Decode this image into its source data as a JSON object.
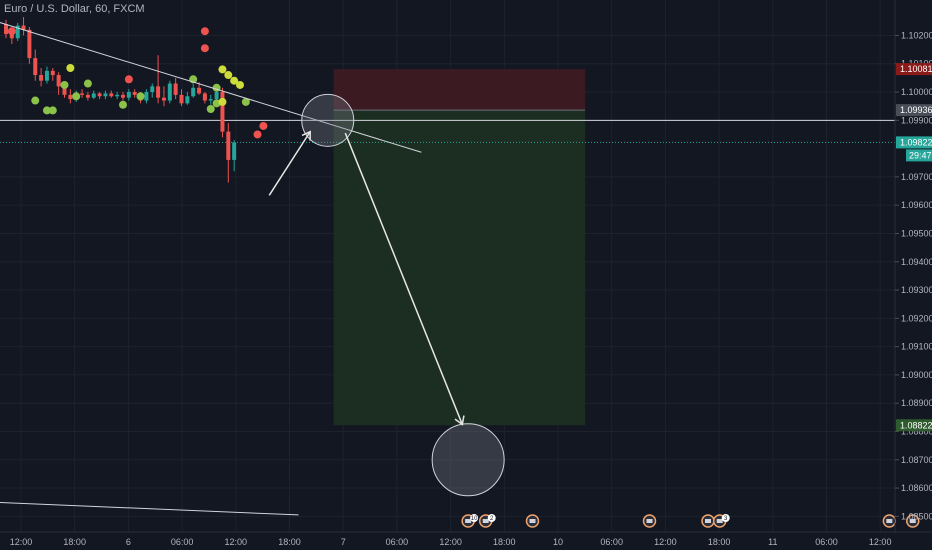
{
  "chart_data": {
    "type": "candlestick",
    "title": "Euro / U.S. Dollar, 60, FXCM",
    "ylim": [
      1.0848,
      1.1029
    ],
    "y_ticks": [
      1.102,
      1.101,
      1.1,
      1.099,
      1.097,
      1.096,
      1.095,
      1.094,
      1.093,
      1.092,
      1.091,
      1.09,
      1.089,
      1.088,
      1.087,
      1.086,
      1.085
    ],
    "x_ticks": [
      {
        "label": "12:00",
        "slot": 0
      },
      {
        "label": "18:00",
        "slot": 6
      },
      {
        "label": "6",
        "slot": 12
      },
      {
        "label": "06:00",
        "slot": 18
      },
      {
        "label": "12:00",
        "slot": 24
      },
      {
        "label": "18:00",
        "slot": 30
      },
      {
        "label": "7",
        "slot": 36
      },
      {
        "label": "06:00",
        "slot": 42
      },
      {
        "label": "12:00",
        "slot": 48
      },
      {
        "label": "18:00",
        "slot": 54
      },
      {
        "label": "10",
        "slot": 60
      },
      {
        "label": "06:00",
        "slot": 66
      },
      {
        "label": "12:00",
        "slot": 72
      },
      {
        "label": "18:00",
        "slot": 78
      },
      {
        "label": "11",
        "slot": 84
      },
      {
        "label": "06:00",
        "slot": 90
      },
      {
        "label": "12:00",
        "slot": 96
      }
    ],
    "candles": [
      {
        "o": 1.1024,
        "h": 1.10255,
        "l": 1.1019,
        "c": 1.10205
      },
      {
        "o": 1.10205,
        "h": 1.10225,
        "l": 1.1017,
        "c": 1.1019
      },
      {
        "o": 1.1019,
        "h": 1.10245,
        "l": 1.1018,
        "c": 1.10235
      },
      {
        "o": 1.10235,
        "h": 1.10265,
        "l": 1.102,
        "c": 1.1022
      },
      {
        "o": 1.1022,
        "h": 1.1023,
        "l": 1.101,
        "c": 1.1012
      },
      {
        "o": 1.1012,
        "h": 1.1015,
        "l": 1.1004,
        "c": 1.1006
      },
      {
        "o": 1.1006,
        "h": 1.10085,
        "l": 1.1002,
        "c": 1.1004
      },
      {
        "o": 1.1004,
        "h": 1.1009,
        "l": 1.1003,
        "c": 1.10075
      },
      {
        "o": 1.10075,
        "h": 1.10085,
        "l": 1.1004,
        "c": 1.1006
      },
      {
        "o": 1.1006,
        "h": 1.1007,
        "l": 1.0999,
        "c": 1.1002
      },
      {
        "o": 1.1002,
        "h": 1.10035,
        "l": 1.0998,
        "c": 1.0999
      },
      {
        "o": 1.0999,
        "h": 1.1001,
        "l": 1.0996,
        "c": 1.09975
      },
      {
        "o": 1.09975,
        "h": 1.10005,
        "l": 1.09965,
        "c": 1.09995
      },
      {
        "o": 1.09995,
        "h": 1.1001,
        "l": 1.0998,
        "c": 1.0999
      },
      {
        "o": 1.0999,
        "h": 1.1,
        "l": 1.0997,
        "c": 1.0998
      },
      {
        "o": 1.0998,
        "h": 1.10005,
        "l": 1.09975,
        "c": 1.09995
      },
      {
        "o": 1.09995,
        "h": 1.1,
        "l": 1.09975,
        "c": 1.09985
      },
      {
        "o": 1.09985,
        "h": 1.10005,
        "l": 1.09975,
        "c": 1.09995
      },
      {
        "o": 1.09995,
        "h": 1.10005,
        "l": 1.0998,
        "c": 1.09985
      },
      {
        "o": 1.09985,
        "h": 1.1,
        "l": 1.09975,
        "c": 1.0999
      },
      {
        "o": 1.0999,
        "h": 1.1,
        "l": 1.0997,
        "c": 1.0998
      },
      {
        "o": 1.0998,
        "h": 1.1001,
        "l": 1.0997,
        "c": 1.1
      },
      {
        "o": 1.1,
        "h": 1.1001,
        "l": 1.0998,
        "c": 1.0999
      },
      {
        "o": 1.0999,
        "h": 1.1,
        "l": 1.0996,
        "c": 1.0997
      },
      {
        "o": 1.0997,
        "h": 1.1001,
        "l": 1.0996,
        "c": 1.1
      },
      {
        "o": 1.1,
        "h": 1.1003,
        "l": 1.0998,
        "c": 1.1002
      },
      {
        "o": 1.1002,
        "h": 1.1013,
        "l": 1.0996,
        "c": 1.0998
      },
      {
        "o": 1.0998,
        "h": 1.1002,
        "l": 1.0995,
        "c": 1.0997
      },
      {
        "o": 1.0997,
        "h": 1.1004,
        "l": 1.0996,
        "c": 1.1003
      },
      {
        "o": 1.1003,
        "h": 1.1005,
        "l": 1.09975,
        "c": 1.0999
      },
      {
        "o": 1.0999,
        "h": 1.1001,
        "l": 1.0995,
        "c": 1.0996
      },
      {
        "o": 1.0996,
        "h": 1.1,
        "l": 1.09955,
        "c": 1.09985
      },
      {
        "o": 1.09985,
        "h": 1.1003,
        "l": 1.0998,
        "c": 1.10015
      },
      {
        "o": 1.10015,
        "h": 1.10035,
        "l": 1.0999,
        "c": 1.09995
      },
      {
        "o": 1.09995,
        "h": 1.1,
        "l": 1.0996,
        "c": 1.0997
      },
      {
        "o": 1.0997,
        "h": 1.0999,
        "l": 1.09955,
        "c": 1.09975
      },
      {
        "o": 1.09975,
        "h": 1.10015,
        "l": 1.09965,
        "c": 1.1
      },
      {
        "o": 1.1,
        "h": 1.10015,
        "l": 1.0984,
        "c": 1.0986
      },
      {
        "o": 1.0986,
        "h": 1.0989,
        "l": 1.0968,
        "c": 1.0976
      },
      {
        "o": 1.0976,
        "h": 1.0983,
        "l": 1.0972,
        "c": 1.09822
      }
    ],
    "dots": [
      {
        "slot": 1,
        "price": 1.10215,
        "color": "red"
      },
      {
        "slot": 5,
        "price": 1.0997,
        "color": "green"
      },
      {
        "slot": 7,
        "price": 1.09935,
        "color": "green"
      },
      {
        "slot": 8,
        "price": 1.09935,
        "color": "green"
      },
      {
        "slot": 11,
        "price": 1.10085,
        "color": "yellow"
      },
      {
        "slot": 10,
        "price": 1.10025,
        "color": "green"
      },
      {
        "slot": 12,
        "price": 1.09985,
        "color": "green"
      },
      {
        "slot": 14,
        "price": 1.1003,
        "color": "green"
      },
      {
        "slot": 20,
        "price": 1.09955,
        "color": "green"
      },
      {
        "slot": 21,
        "price": 1.10045,
        "color": "red"
      },
      {
        "slot": 23,
        "price": 1.09985,
        "color": "green"
      },
      {
        "slot": 32,
        "price": 1.10045,
        "color": "green"
      },
      {
        "slot": 34,
        "price": 1.10215,
        "color": "red"
      },
      {
        "slot": 34,
        "price": 1.10155,
        "color": "red"
      },
      {
        "slot": 36,
        "price": 1.10015,
        "color": "green"
      },
      {
        "slot": 37,
        "price": 1.1008,
        "color": "yellow"
      },
      {
        "slot": 38,
        "price": 1.1006,
        "color": "yellow"
      },
      {
        "slot": 35,
        "price": 1.0994,
        "color": "green"
      },
      {
        "slot": 36,
        "price": 1.0996,
        "color": "green"
      },
      {
        "slot": 39,
        "price": 1.1004,
        "color": "yellow"
      },
      {
        "slot": 40,
        "price": 1.10025,
        "color": "yellow"
      },
      {
        "slot": 41,
        "price": 1.09965,
        "color": "green"
      },
      {
        "slot": 37,
        "price": 1.09965,
        "color": "yellow"
      },
      {
        "slot": 43,
        "price": 1.0985,
        "color": "red"
      },
      {
        "slot": 44,
        "price": 1.0988,
        "color": "red"
      }
    ],
    "trendline": [
      {
        "slot": -8,
        "price": 1.1029
      },
      {
        "slot": 71,
        "price": 1.09787
      }
    ],
    "bottom_line": [
      {
        "slot": -8,
        "price": 1.08555
      },
      {
        "slot": 50,
        "price": 1.08505
      }
    ],
    "horizontal_line": {
      "price": 1.099
    },
    "current_price_line": {
      "price": 1.09822
    },
    "position": {
      "type": "short",
      "left_slot": 56,
      "right_slot": 99,
      "stop": 1.10081,
      "entry": 1.09936,
      "target": 1.08822
    },
    "circles": [
      {
        "slot": 55,
        "price": 1.099,
        "r": 26
      },
      {
        "slot": 79,
        "price": 1.087,
        "r": 36
      }
    ],
    "arrows": [
      {
        "from": {
          "slot": 45,
          "price": 1.09635
        },
        "to": {
          "slot": 52,
          "price": 1.0986
        }
      },
      {
        "from": {
          "slot": 58,
          "price": 1.09855
        },
        "to": {
          "slot": 78,
          "price": 1.08825
        }
      }
    ],
    "events": [
      {
        "slot": 79,
        "count": "10"
      },
      {
        "slot": 82,
        "count": "2"
      },
      {
        "slot": 90,
        "count": ""
      },
      {
        "slot": 110,
        "count": ""
      },
      {
        "slot": 120,
        "count": ""
      },
      {
        "slot": 122,
        "count": "3"
      },
      {
        "slot": 151,
        "count": ""
      },
      {
        "slot": 155,
        "count": ""
      }
    ],
    "price_tags": [
      {
        "label": "1.10081",
        "price": 1.10081,
        "bg": "#8b1a1a"
      },
      {
        "label": "1.09936",
        "price": 1.09936,
        "bg": "#4a4e58"
      },
      {
        "label": "1.09822",
        "price": 1.09822,
        "bg": "#26a69a"
      },
      {
        "label": "1.08822",
        "price": 1.08822,
        "bg": "#2e5b2e"
      }
    ],
    "countdown": "29:47",
    "colors": {
      "up": "#26a69a",
      "down": "#ef5350",
      "dot_red": "#ef5350",
      "dot_green": "#8bc34a",
      "dot_yellow": "#cddc39",
      "stop_zone": "#3b1a22",
      "target_zone": "#1c2e22"
    }
  }
}
